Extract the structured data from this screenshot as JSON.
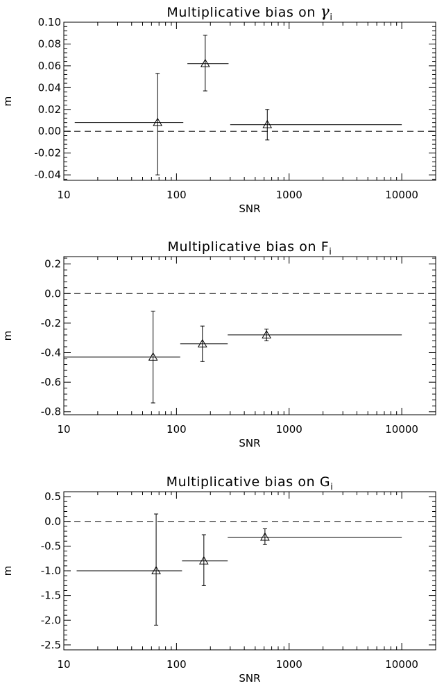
{
  "chart_data": [
    {
      "type": "scatter",
      "title": "Multiplicative bias on ",
      "title_symbol": "γ",
      "title_subscript": "i",
      "xlabel": "SNR",
      "ylabel": "m",
      "xscale": "log",
      "xlim": [
        10,
        20000
      ],
      "ylim": [
        -0.045,
        0.1
      ],
      "xticks": [
        10,
        100,
        1000,
        10000
      ],
      "xtick_labels": [
        "10",
        "100",
        "1000",
        "10000"
      ],
      "yticks": [
        -0.04,
        -0.02,
        0.0,
        0.02,
        0.04,
        0.06,
        0.08,
        0.1
      ],
      "ytick_labels": [
        "-0.04",
        "-0.02",
        "0.00",
        "0.02",
        "0.04",
        "0.06",
        "0.08",
        "0.10"
      ],
      "reference_line": 0.0,
      "points": [
        {
          "x": 68,
          "y": 0.008,
          "xlo": 12.5,
          "xhi": 115,
          "ylo": -0.04,
          "yhi": 0.053
        },
        {
          "x": 180,
          "y": 0.062,
          "xlo": 125,
          "xhi": 290,
          "ylo": 0.037,
          "yhi": 0.088
        },
        {
          "x": 640,
          "y": 0.006,
          "xlo": 300,
          "xhi": 10000,
          "ylo": -0.008,
          "yhi": 0.02
        }
      ]
    },
    {
      "type": "scatter",
      "title": "Multiplicative bias on F",
      "title_symbol": "",
      "title_subscript": "i",
      "xlabel": "SNR",
      "ylabel": "m",
      "xscale": "log",
      "xlim": [
        10,
        20000
      ],
      "ylim": [
        -0.82,
        0.25
      ],
      "xticks": [
        10,
        100,
        1000,
        10000
      ],
      "xtick_labels": [
        "10",
        "100",
        "1000",
        "10000"
      ],
      "yticks": [
        -0.8,
        -0.6,
        -0.4,
        -0.2,
        0.0,
        0.2
      ],
      "ytick_labels": [
        "-0.8",
        "-0.6",
        "-0.4",
        "-0.2",
        "0.0",
        "0.2"
      ],
      "reference_line": 0.0,
      "points": [
        {
          "x": 62,
          "y": -0.43,
          "xlo": 10,
          "xhi": 108,
          "ylo": -0.74,
          "yhi": -0.12
        },
        {
          "x": 170,
          "y": -0.34,
          "xlo": 108,
          "xhi": 285,
          "ylo": -0.46,
          "yhi": -0.22
        },
        {
          "x": 630,
          "y": -0.28,
          "xlo": 285,
          "xhi": 10000,
          "ylo": -0.32,
          "yhi": -0.24
        }
      ]
    },
    {
      "type": "scatter",
      "title": "Multiplicative bias on G",
      "title_symbol": "",
      "title_subscript": "i",
      "xlabel": "SNR",
      "ylabel": "m",
      "xscale": "log",
      "xlim": [
        10,
        20000
      ],
      "ylim": [
        -2.6,
        0.6
      ],
      "xticks": [
        10,
        100,
        1000,
        10000
      ],
      "xtick_labels": [
        "10",
        "100",
        "1000",
        "10000"
      ],
      "yticks": [
        -2.5,
        -2.0,
        -1.5,
        -1.0,
        -0.5,
        0.0,
        0.5
      ],
      "ytick_labels": [
        "-2.5",
        "-2.0",
        "-1.5",
        "-1.0",
        "-0.5",
        "0.0",
        "0.5"
      ],
      "reference_line": 0.0,
      "points": [
        {
          "x": 66,
          "y": -1.0,
          "xlo": 13,
          "xhi": 112,
          "ylo": -2.1,
          "yhi": 0.15
        },
        {
          "x": 175,
          "y": -0.8,
          "xlo": 112,
          "xhi": 285,
          "ylo": -1.3,
          "yhi": -0.27
        },
        {
          "x": 610,
          "y": -0.32,
          "xlo": 285,
          "xhi": 10000,
          "ylo": -0.47,
          "yhi": -0.15
        }
      ]
    }
  ]
}
